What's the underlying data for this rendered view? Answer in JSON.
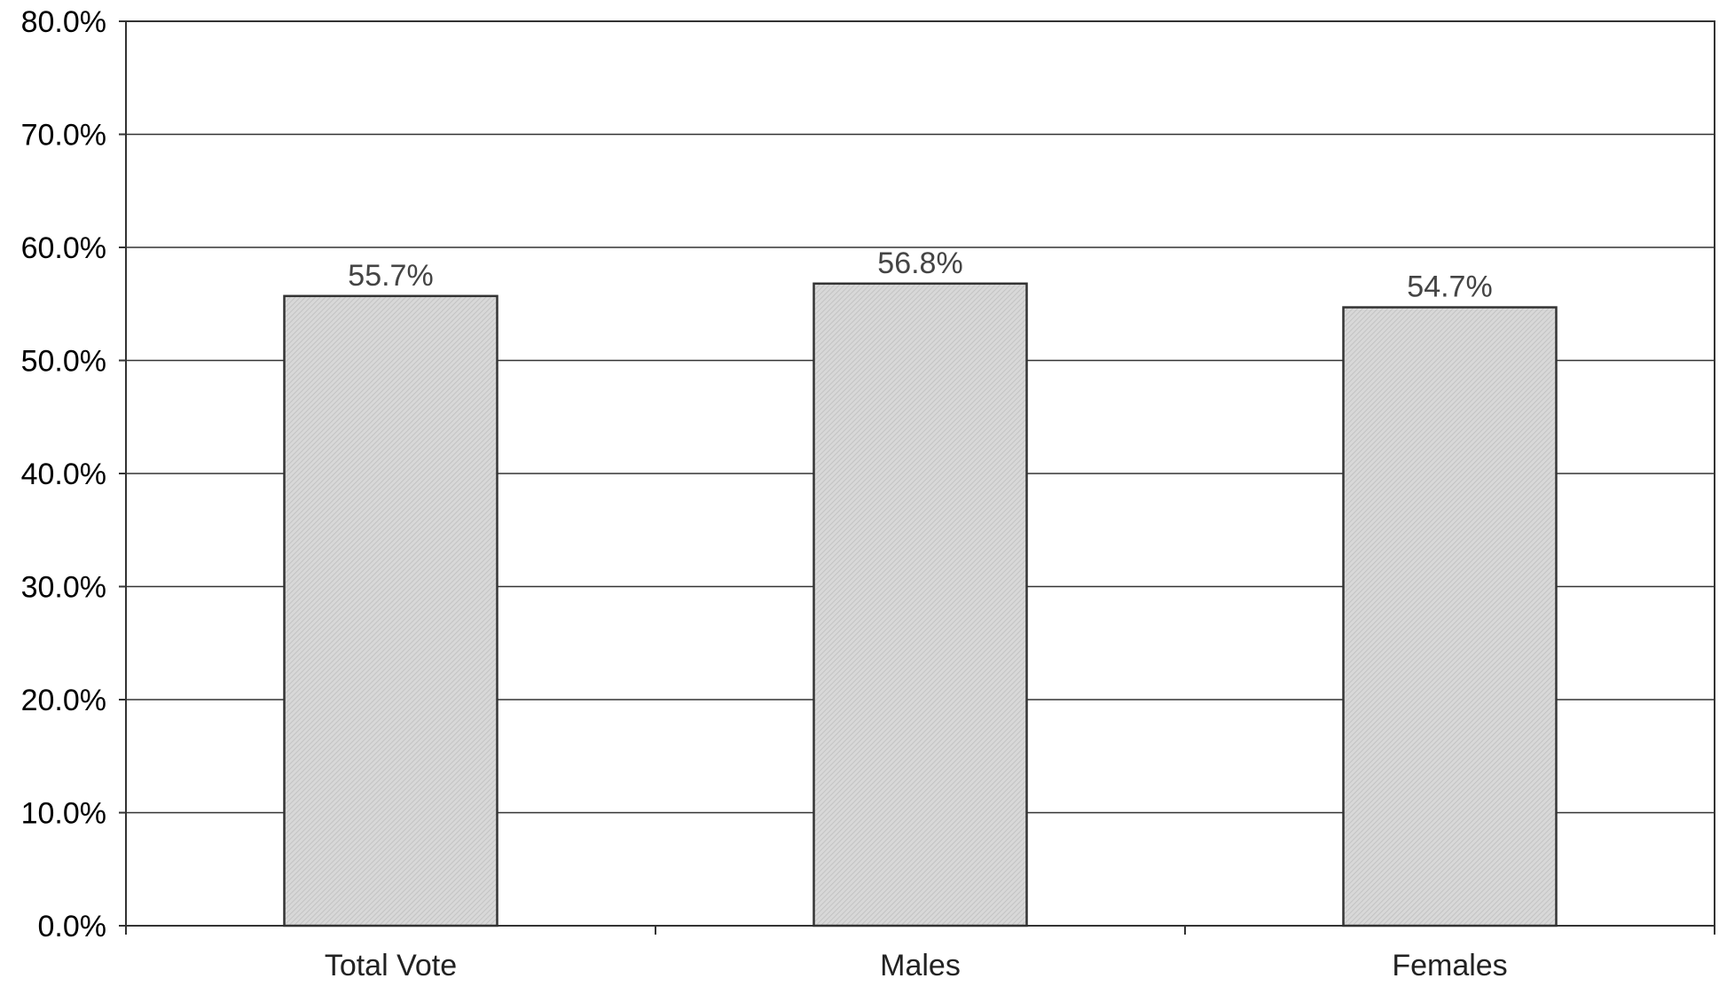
{
  "chart_data": {
    "type": "bar",
    "categories": [
      "Total Vote",
      "Males",
      "Females"
    ],
    "values": [
      55.7,
      56.8,
      54.7
    ],
    "value_labels": [
      "55.7%",
      "56.8%",
      "54.7%"
    ],
    "ylim": [
      0,
      80
    ],
    "yticks": [
      0,
      10,
      20,
      30,
      40,
      50,
      60,
      70,
      80
    ],
    "ytick_labels": [
      "0.0%",
      "10.0%",
      "20.0%",
      "30.0%",
      "40.0%",
      "50.0%",
      "60.0%",
      "70.0%",
      "80.0%"
    ],
    "title": "",
    "xlabel": "",
    "ylabel": "",
    "grid": true,
    "legend": "none",
    "bar_color": "#d4d4d4"
  }
}
